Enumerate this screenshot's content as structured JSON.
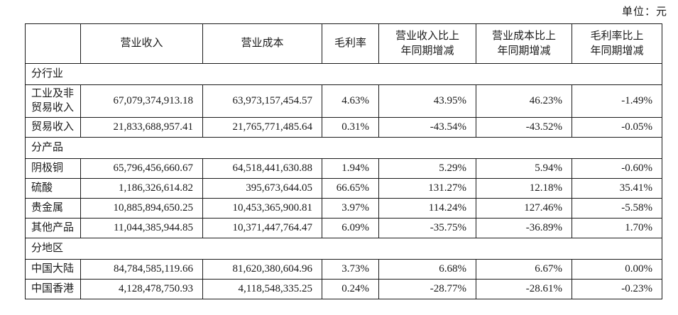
{
  "unit_label": "单位：元",
  "table": {
    "headers": [
      "",
      "营业收入",
      "营业成本",
      "毛利率",
      "营业收入比上\n年同期增减",
      "营业成本比上\n年同期增减",
      "毛利率比上\n年同期增减"
    ],
    "rows": [
      {
        "type": "section",
        "label": "分行业"
      },
      {
        "type": "data",
        "label": "工业及非贸易收入",
        "values": [
          "67,079,374,913.18",
          "63,973,157,454.57",
          "4.63%",
          "43.95%",
          "46.23%",
          "-1.49%"
        ]
      },
      {
        "type": "data",
        "label": "贸易收入",
        "values": [
          "21,833,688,957.41",
          "21,765,771,485.64",
          "0.31%",
          "-43.54%",
          "-43.52%",
          "-0.05%"
        ]
      },
      {
        "type": "section",
        "label": "分产品"
      },
      {
        "type": "data",
        "label": "阴极铜",
        "values": [
          "65,796,456,660.67",
          "64,518,441,630.88",
          "1.94%",
          "5.29%",
          "5.94%",
          "-0.60%"
        ]
      },
      {
        "type": "data",
        "label": "硫酸",
        "values": [
          "1,186,326,614.82",
          "395,673,644.05",
          "66.65%",
          "131.27%",
          "12.18%",
          "35.41%"
        ]
      },
      {
        "type": "data",
        "label": "贵金属",
        "values": [
          "10,885,894,650.25",
          "10,453,365,900.81",
          "3.97%",
          "114.24%",
          "127.46%",
          "-5.58%"
        ]
      },
      {
        "type": "data",
        "label": "其他产品",
        "values": [
          "11,044,385,944.85",
          "10,371,447,764.47",
          "6.09%",
          "-35.75%",
          "-36.89%",
          "1.70%"
        ]
      },
      {
        "type": "section",
        "label": "分地区"
      },
      {
        "type": "data",
        "label": "中国大陆",
        "values": [
          "84,784,585,119.66",
          "81,620,380,604.96",
          "3.73%",
          "6.68%",
          "6.67%",
          "0.00%"
        ]
      },
      {
        "type": "data",
        "label": "中国香港",
        "values": [
          "4,128,478,750.93",
          "4,118,548,335.25",
          "0.24%",
          "-28.77%",
          "-28.61%",
          "-0.23%"
        ]
      }
    ]
  }
}
